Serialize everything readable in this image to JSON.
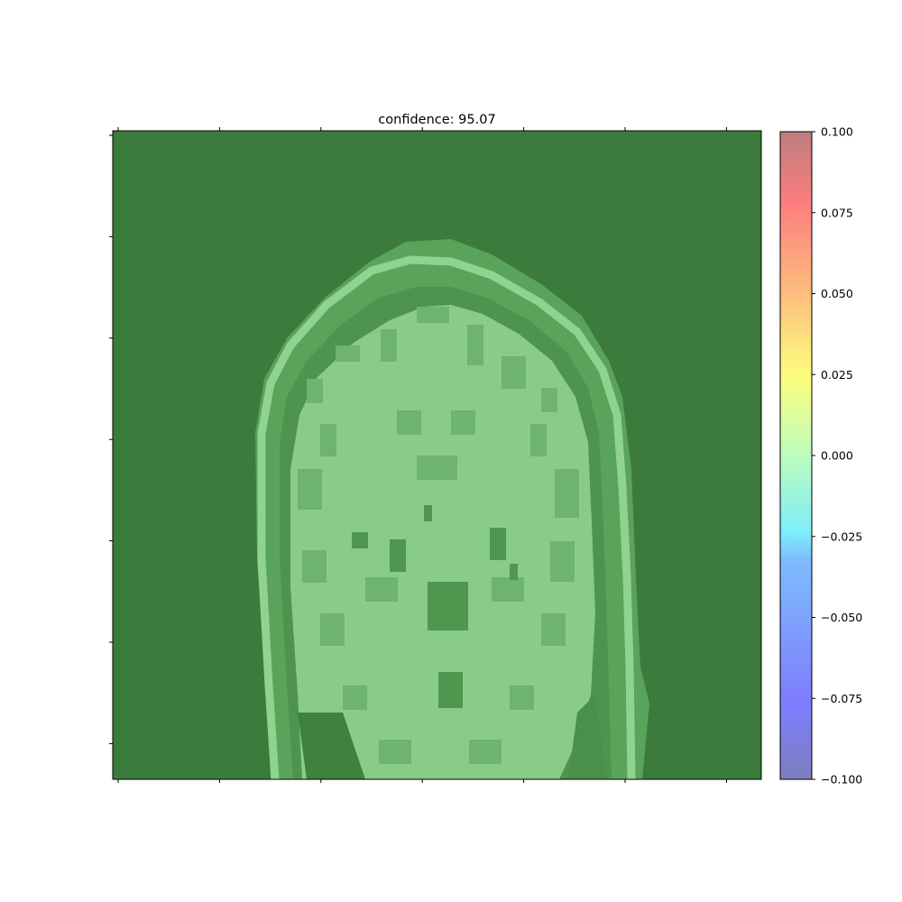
{
  "chart_data": {
    "type": "heatmap",
    "title": "confidence: 95.07",
    "xlabel": "",
    "ylabel": "",
    "x_tick_labels_visible": false,
    "y_tick_labels_visible": false,
    "x_tick_count": 7,
    "y_tick_count": 7,
    "background_color": "#3b7b3b",
    "image_content": "coronal brain MRI slice with overlay",
    "colorbar": {
      "colormap": "jet",
      "alpha": 0.5,
      "min": -0.1,
      "max": 0.1,
      "ticks": [
        0.1,
        0.075,
        0.05,
        0.025,
        0.0,
        -0.025,
        -0.05,
        -0.075,
        -0.1
      ],
      "tick_labels": [
        "0.100",
        "0.075",
        "0.050",
        "0.025",
        "0.000",
        "−0.025",
        "−0.050",
        "−0.075",
        "−0.100"
      ]
    }
  }
}
